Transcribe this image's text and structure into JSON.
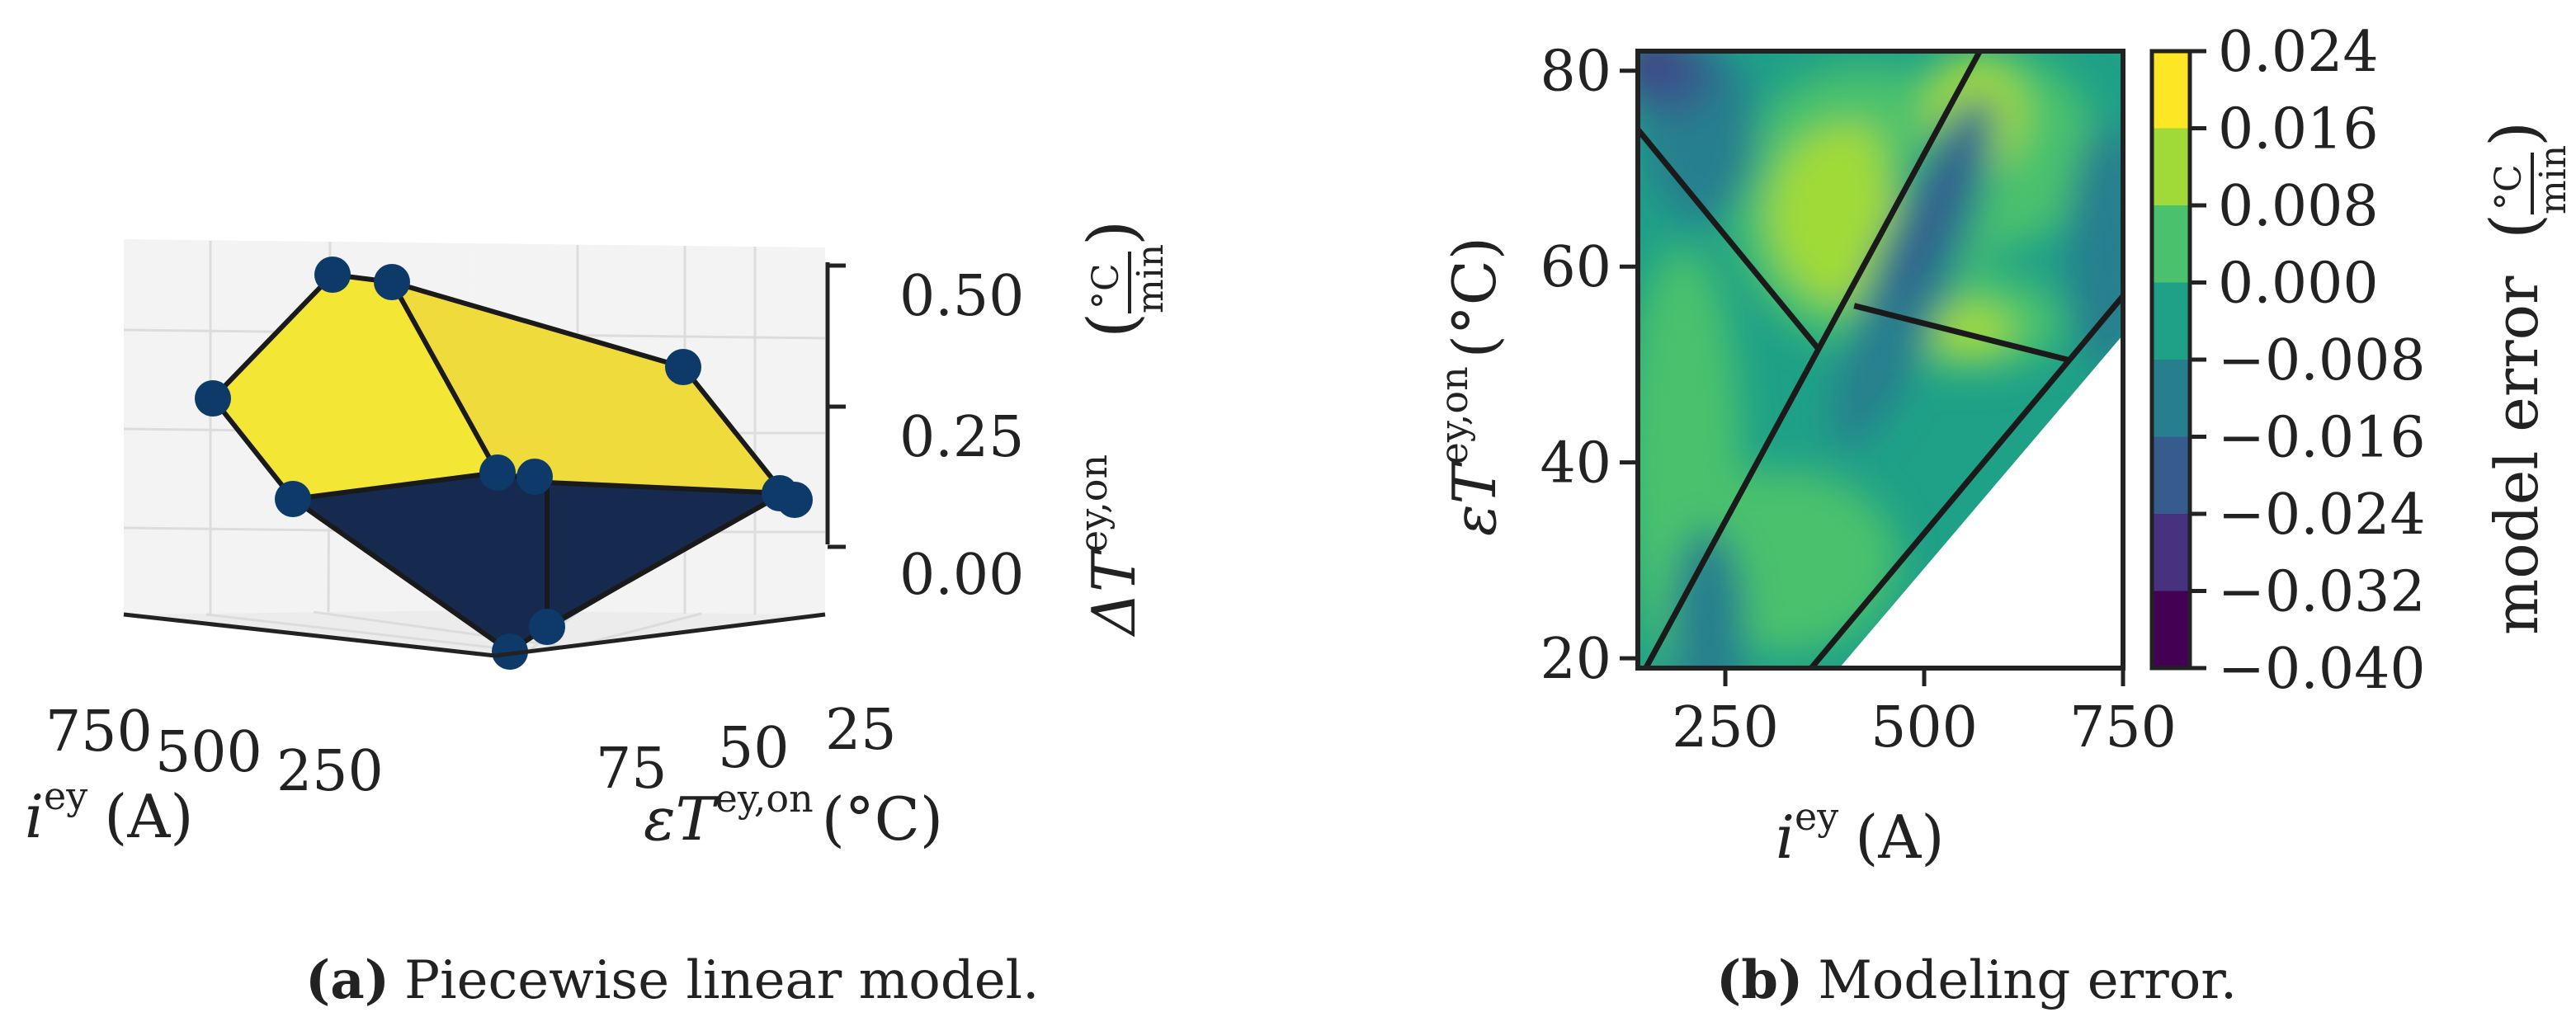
{
  "chart_data": [
    {
      "type": "surface3d",
      "panel_label": "(a)",
      "caption": "Piecewise linear model.",
      "xlabel_var": "i",
      "xlabel_sup": "ey",
      "xlabel_unit": "(A)",
      "ylabel_var": "εT",
      "ylabel_sup": "ey,on",
      "ylabel_unit": "(°C)",
      "zlabel_var": "ΔT",
      "zlabel_sup": "ey,on",
      "zlabel_unit_num": "°C",
      "zlabel_unit_den": "min",
      "x_ticks": [
        "750",
        "500",
        "250"
      ],
      "y_ticks": [
        "75",
        "50",
        "25"
      ],
      "z_ticks": [
        "0.50",
        "0.25",
        "0.00"
      ],
      "colors": {
        "upper_face": "#f4e634",
        "upper_face_right": "#f1dd3a",
        "lower_face": "#152a4e",
        "marker": "#0d3a68"
      }
    },
    {
      "type": "heatmap",
      "panel_label": "(b)",
      "caption": "Modeling error.",
      "xlabel_var": "i",
      "xlabel_sup": "ey",
      "xlabel_unit": "(A)",
      "ylabel_var": "εT",
      "ylabel_sup": "ey,on",
      "ylabel_unit": "(°C)",
      "xlim": [
        140,
        750
      ],
      "ylim": [
        19,
        82
      ],
      "x_ticks": [
        {
          "value": 250,
          "label": "250"
        },
        {
          "value": 500,
          "label": "500"
        },
        {
          "value": 750,
          "label": "750"
        }
      ],
      "y_ticks": [
        {
          "value": 20,
          "label": "20"
        },
        {
          "value": 40,
          "label": "40"
        },
        {
          "value": 60,
          "label": "60"
        },
        {
          "value": 80,
          "label": "80"
        }
      ],
      "region_boundaries": [
        {
          "from": [
            140,
            74
          ],
          "to": [
            368,
            51.5
          ]
        },
        {
          "from": [
            150,
            19
          ],
          "to": [
            570,
            82
          ]
        },
        {
          "from": [
            412,
            56
          ],
          "to": [
            680,
            50.5
          ]
        }
      ],
      "domain_edge": {
        "from": [
          358,
          19
        ],
        "to": [
          750,
          57
        ]
      },
      "colorbar": {
        "label": "model error",
        "unit_num": "°C",
        "unit_den": "min",
        "range": [
          -0.04,
          0.024
        ],
        "levels": [
          {
            "value": 0.024,
            "label": "0.024"
          },
          {
            "value": 0.016,
            "label": "0.016"
          },
          {
            "value": 0.008,
            "label": "0.008"
          },
          {
            "value": 0.0,
            "label": "0.000"
          },
          {
            "value": -0.008,
            "label": "−0.008"
          },
          {
            "value": -0.016,
            "label": "−0.016"
          },
          {
            "value": -0.024,
            "label": "−0.024"
          },
          {
            "value": -0.032,
            "label": "−0.032"
          },
          {
            "value": -0.04,
            "label": "−0.040"
          }
        ],
        "colors": [
          "#440154",
          "#46327e",
          "#365c8d",
          "#277f8e",
          "#1fa187",
          "#4ac16d",
          "#a0da39",
          "#fde725"
        ]
      }
    }
  ]
}
